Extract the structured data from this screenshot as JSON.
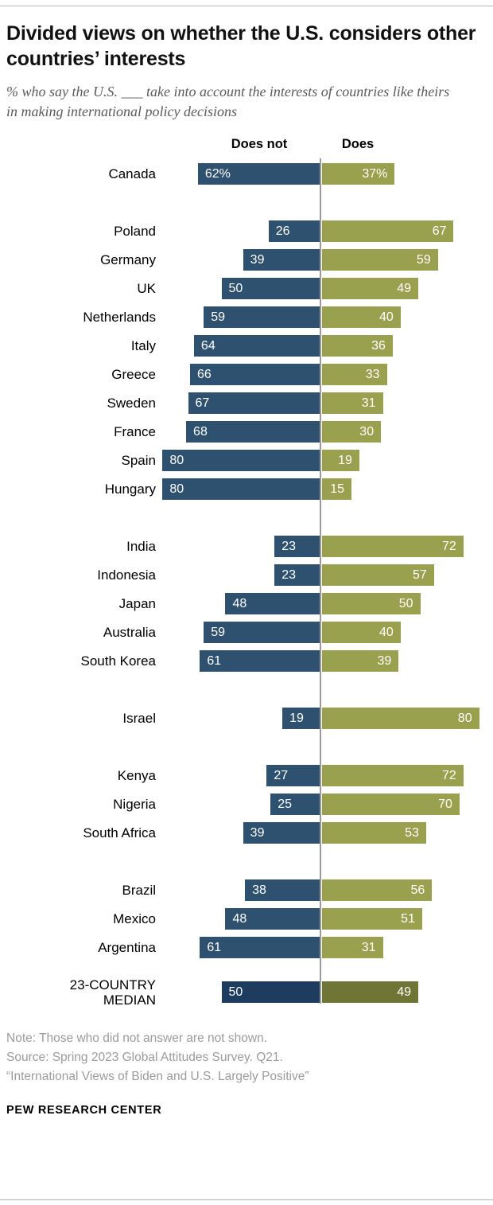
{
  "header": {
    "title": "Divided views on whether the U.S. considers other countries’ interests",
    "subtitle": "% who say the U.S. ___ take into account the interests of countries like theirs in making international policy decisions"
  },
  "chart_data": {
    "type": "bar",
    "variant": "diverging-horizontal",
    "left_header": "Does not",
    "right_header": "Does",
    "value_unit": "%",
    "xlim_left": [
      0,
      80
    ],
    "xlim_right": [
      0,
      80
    ],
    "colors": {
      "does_not": "#2e5170",
      "does": "#9aa14e",
      "median_does_not": "#1d3c60",
      "median_does": "#6f7635",
      "axis": "#9a9a9a"
    },
    "groups": [
      {
        "rows": [
          {
            "country": "Canada",
            "does_not": 62,
            "does": 37,
            "does_not_label": "62%",
            "does_label": "37%"
          }
        ]
      },
      {
        "rows": [
          {
            "country": "Poland",
            "does_not": 26,
            "does": 67
          },
          {
            "country": "Germany",
            "does_not": 39,
            "does": 59
          },
          {
            "country": "UK",
            "does_not": 50,
            "does": 49
          },
          {
            "country": "Netherlands",
            "does_not": 59,
            "does": 40
          },
          {
            "country": "Italy",
            "does_not": 64,
            "does": 36
          },
          {
            "country": "Greece",
            "does_not": 66,
            "does": 33
          },
          {
            "country": "Sweden",
            "does_not": 67,
            "does": 31
          },
          {
            "country": "France",
            "does_not": 68,
            "does": 30
          },
          {
            "country": "Spain",
            "does_not": 80,
            "does": 19
          },
          {
            "country": "Hungary",
            "does_not": 80,
            "does": 15
          }
        ]
      },
      {
        "rows": [
          {
            "country": "India",
            "does_not": 23,
            "does": 72
          },
          {
            "country": "Indonesia",
            "does_not": 23,
            "does": 57
          },
          {
            "country": "Japan",
            "does_not": 48,
            "does": 50
          },
          {
            "country": "Australia",
            "does_not": 59,
            "does": 40
          },
          {
            "country": "South Korea",
            "does_not": 61,
            "does": 39
          }
        ]
      },
      {
        "rows": [
          {
            "country": "Israel",
            "does_not": 19,
            "does": 80
          }
        ]
      },
      {
        "rows": [
          {
            "country": "Kenya",
            "does_not": 27,
            "does": 72
          },
          {
            "country": "Nigeria",
            "does_not": 25,
            "does": 70
          },
          {
            "country": "South Africa",
            "does_not": 39,
            "does": 53
          }
        ]
      },
      {
        "rows": [
          {
            "country": "Brazil",
            "does_not": 38,
            "does": 56
          },
          {
            "country": "Mexico",
            "does_not": 48,
            "does": 51
          },
          {
            "country": "Argentina",
            "does_not": 61,
            "does": 31
          }
        ]
      }
    ],
    "median": {
      "country": "23-COUNTRY MEDIAN",
      "label_lines": [
        "23-COUNTRY",
        "MEDIAN"
      ],
      "does_not": 50,
      "does": 49
    }
  },
  "footer": {
    "note": "Note: Those who did not answer are not shown.",
    "source": "Source: Spring 2023 Global Attitudes Survey. Q21.",
    "report": "“International Views of Biden and U.S. Largely Positive”",
    "brand": "PEW RESEARCH CENTER"
  }
}
